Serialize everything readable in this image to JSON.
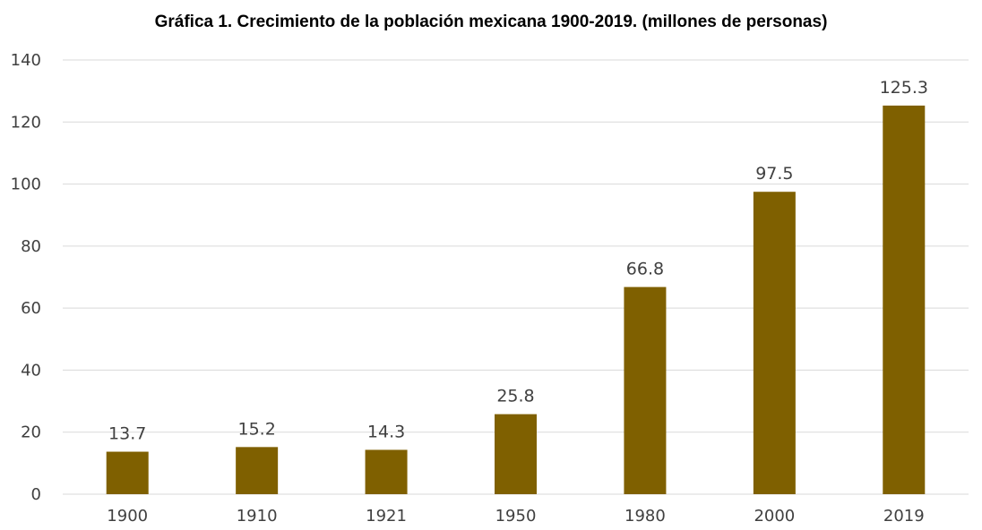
{
  "chart_data": {
    "type": "bar",
    "title": "Gráfica 1. Crecimiento de la población mexicana 1900-2019. (millones de personas)",
    "categories": [
      "1900",
      "1910",
      "1921",
      "1950",
      "1980",
      "2000",
      "2019"
    ],
    "values": [
      13.7,
      15.2,
      14.3,
      25.8,
      66.8,
      97.5,
      125.3
    ],
    "data_labels": [
      "13.7",
      "15.2",
      "14.3",
      "25.8",
      "66.8",
      "97.5",
      "125.3"
    ],
    "ylim": [
      0,
      140
    ],
    "yticks": [
      "0",
      "20",
      "40",
      "60",
      "80",
      "100",
      "120",
      "140"
    ],
    "xlabel": "",
    "ylabel": "",
    "grid": true,
    "legend": "none",
    "bar_color": "#7F6000",
    "grid_color": "#D9D9D9"
  }
}
